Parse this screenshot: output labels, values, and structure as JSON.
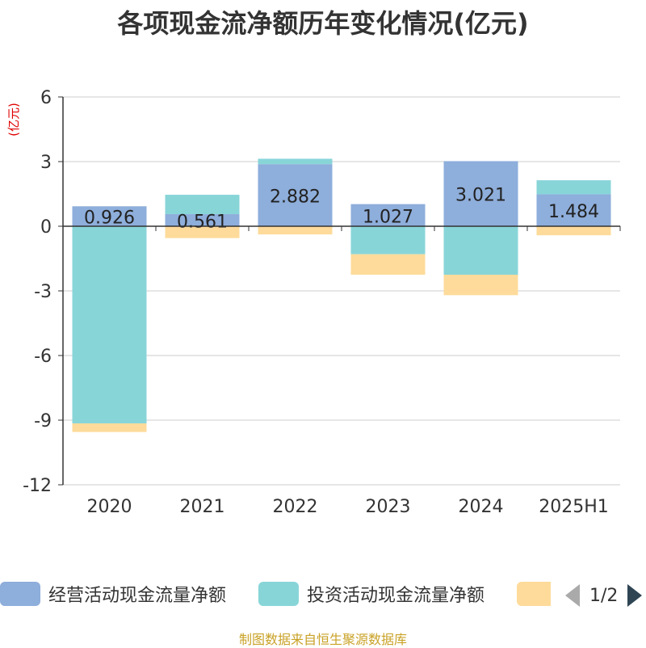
{
  "chart_data": {
    "type": "bar",
    "stacked": true,
    "title": "各项现金流净额历年变化情况(亿元)",
    "ylabel": "(亿元)",
    "categories": [
      "2020",
      "2021",
      "2022",
      "2023",
      "2024",
      "2025H1"
    ],
    "ylim": [
      -12,
      6
    ],
    "yticks": [
      6,
      3,
      0,
      -3,
      -6,
      -9,
      -12
    ],
    "grid": true,
    "legend_position": "bottom",
    "series": [
      {
        "name": "经营活动现金流量净额",
        "color": "#8eaedb",
        "values": [
          0.926,
          0.561,
          2.882,
          1.027,
          3.021,
          1.484
        ],
        "labels": [
          "0.926",
          "0.561",
          "2.882",
          "1.027",
          "3.021",
          "1.484"
        ]
      },
      {
        "name": "投资活动现金流量净额",
        "color": "#88d5d8",
        "values": [
          -9.15,
          0.9,
          0.25,
          -1.3,
          -2.25,
          0.65
        ]
      },
      {
        "name": "",
        "color": "#fedb9b",
        "values": [
          -0.4,
          -0.55,
          -0.38,
          -0.95,
          -0.95,
          -0.42
        ]
      }
    ]
  },
  "legend": {
    "items": [
      {
        "label": "经营活动现金流量净额",
        "color": "#8eaedb"
      },
      {
        "label": "投资活动现金流量净额",
        "color": "#88d5d8"
      },
      {
        "label": "",
        "color": "#fedb9b"
      }
    ],
    "pager_text": "1/2"
  },
  "source_text": "制图数据来自恒生聚源数据库"
}
